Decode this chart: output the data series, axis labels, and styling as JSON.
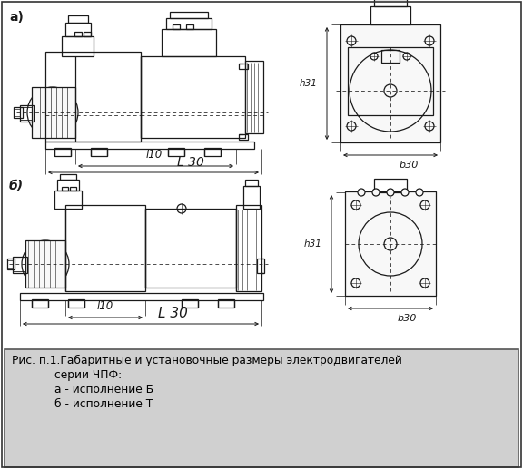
{
  "caption_line1": "Рис. п.1.Габаритные и установочные размеры электродвигателей",
  "caption_line2": "серии ЧПФ:",
  "caption_line3": "а - исполнение Б",
  "caption_line4": "б - исполнение Т",
  "label_a": "а)",
  "label_b": "б)",
  "label_l10a": "l10",
  "label_l30a": "L 30",
  "label_l10b": "l10",
  "label_l30b": "L 30",
  "label_h31a": "h31",
  "label_h31b": "h31",
  "label_b30a": "b30",
  "label_b30b": "b30",
  "bg_color": "#ffffff",
  "caption_bg": "#d0d0d0",
  "line_color": "#1a1a1a",
  "caption_border": "#555555"
}
